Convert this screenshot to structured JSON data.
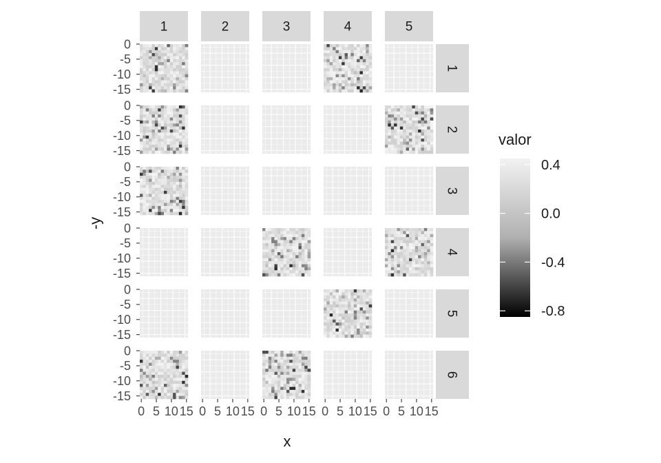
{
  "chart_data": {
    "type": "heatmap",
    "title": "",
    "xlabel": "x",
    "ylabel": "-y",
    "col_facets": [
      "1",
      "2",
      "3",
      "4",
      "5"
    ],
    "row_facets": [
      "1",
      "2",
      "3",
      "4",
      "5",
      "6"
    ],
    "x_ticks": [
      "0",
      "5",
      "10",
      "15"
    ],
    "y_ticks": [
      "0",
      "-5",
      "-10",
      "-15"
    ],
    "xlim": [
      0,
      16
    ],
    "ylim": [
      -16,
      0
    ],
    "grid": true,
    "legend": {
      "title": "valor",
      "position": "right",
      "ticks": [
        "0.4",
        "0.0",
        "-0.4",
        "-0.8"
      ],
      "range": [
        -0.85,
        0.45
      ],
      "low_color": "#000000",
      "high_color": "#f2f2f2"
    },
    "filled_panels": [
      {
        "row": "1",
        "col": "1"
      },
      {
        "row": "1",
        "col": "4"
      },
      {
        "row": "2",
        "col": "1"
      },
      {
        "row": "2",
        "col": "5"
      },
      {
        "row": "3",
        "col": "1"
      },
      {
        "row": "4",
        "col": "3"
      },
      {
        "row": "4",
        "col": "5"
      },
      {
        "row": "5",
        "col": "4"
      },
      {
        "row": "6",
        "col": "1"
      },
      {
        "row": "6",
        "col": "3"
      }
    ],
    "grid_size": 16,
    "colors": {
      "panel_background": "#ebebeb",
      "grid_line": "#ffffff",
      "strip_background": "#d9d9d9",
      "text": "#1a1a1a",
      "tick_text": "#4d4d4d"
    }
  }
}
